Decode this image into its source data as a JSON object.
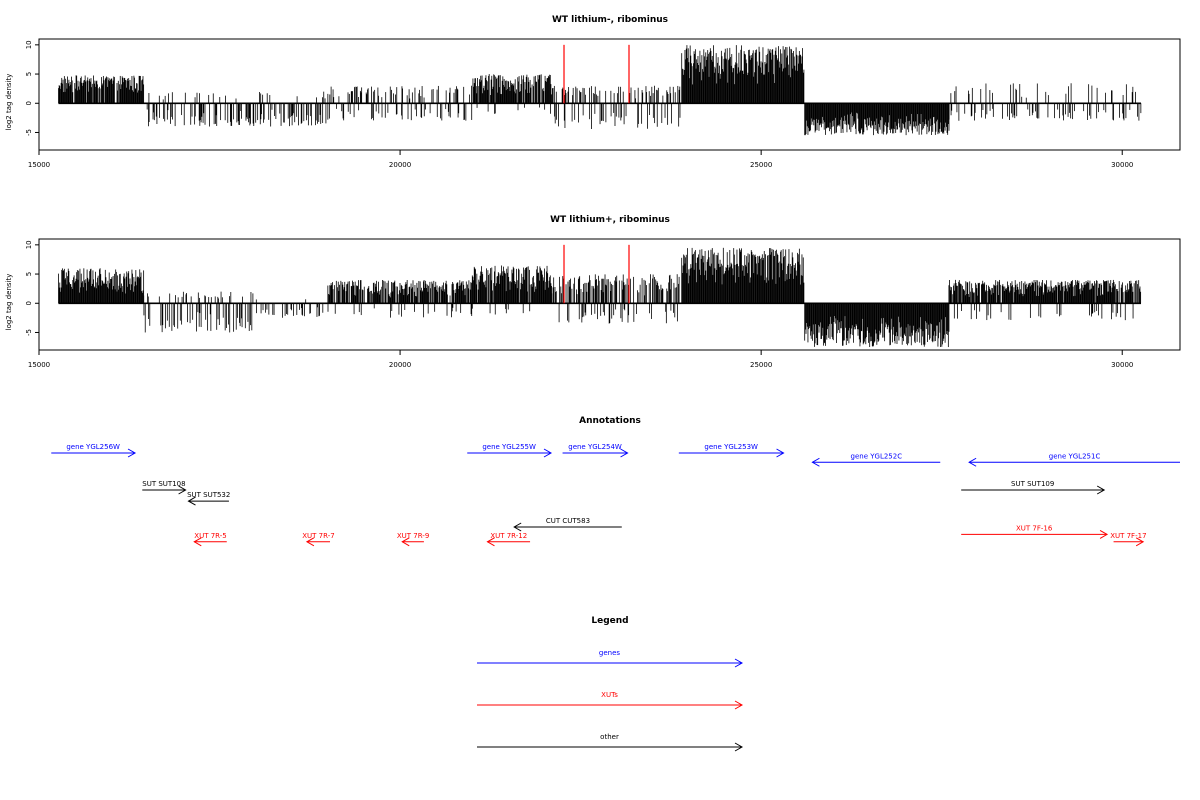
{
  "chart_data": [
    {
      "type": "bar",
      "title": "WT lithium-, ribominus",
      "ylabel": "log2 tag density",
      "xlim": [
        15000,
        30800
      ],
      "ylim": [
        -8,
        11
      ],
      "x_ticks": [
        15000,
        20000,
        25000,
        30000
      ],
      "y_ticks": [
        10,
        5,
        0,
        -5
      ],
      "data_range": [
        15270,
        30260
      ],
      "highlight_x": [
        22270,
        23170
      ],
      "highlight_color": "#ff0000",
      "bar_color": "#000000",
      "segments": [
        {
          "start": 15270,
          "end": 16450,
          "density": 0.9,
          "max": 4.8,
          "min": 0,
          "neg_density": 0.05
        },
        {
          "start": 16450,
          "end": 19000,
          "density": 0.08,
          "max": 2,
          "min": -4,
          "neg_density": 0.6
        },
        {
          "start": 19000,
          "end": 21000,
          "density": 0.25,
          "max": 3,
          "min": -3,
          "neg_density": 0.4
        },
        {
          "start": 21000,
          "end": 22100,
          "density": 0.85,
          "max": 5,
          "min": -2,
          "neg_density": 0.15
        },
        {
          "start": 22100,
          "end": 23900,
          "density": 0.3,
          "max": 3,
          "min": -4.5,
          "neg_density": 0.4
        },
        {
          "start": 23900,
          "end": 25600,
          "density": 1.0,
          "max": 10,
          "min": 0,
          "neg_density": 0
        },
        {
          "start": 25600,
          "end": 27600,
          "density": 0.95,
          "max": 0,
          "min": -5.5,
          "neg_density": 1
        },
        {
          "start": 27600,
          "end": 30260,
          "density": 0.12,
          "max": 3.5,
          "min": -3,
          "neg_density": 0.5
        }
      ]
    },
    {
      "type": "bar",
      "title": "WT lithium+, ribominus",
      "ylabel": "log2 tag density",
      "xlim": [
        15000,
        30800
      ],
      "ylim": [
        -8,
        11
      ],
      "x_ticks": [
        15000,
        20000,
        25000,
        30000
      ],
      "y_ticks": [
        10,
        5,
        0,
        -5
      ],
      "data_range": [
        15270,
        30260
      ],
      "highlight_x": [
        22270,
        23170
      ],
      "highlight_color": "#ff0000",
      "bar_color": "#000000",
      "segments": [
        {
          "start": 15270,
          "end": 16450,
          "density": 1.0,
          "max": 6,
          "min": 0,
          "neg_density": 0.02
        },
        {
          "start": 16450,
          "end": 18000,
          "density": 0.2,
          "max": 2,
          "min": -5,
          "neg_density": 0.5
        },
        {
          "start": 18000,
          "end": 19000,
          "density": 0.05,
          "max": 1,
          "min": -2.5,
          "neg_density": 0.5
        },
        {
          "start": 19000,
          "end": 21000,
          "density": 0.8,
          "max": 4,
          "min": -2.5,
          "neg_density": 0.2
        },
        {
          "start": 21000,
          "end": 22100,
          "density": 0.95,
          "max": 6.5,
          "min": -2,
          "neg_density": 0.15
        },
        {
          "start": 22100,
          "end": 23900,
          "density": 0.55,
          "max": 5,
          "min": -3.5,
          "neg_density": 0.35
        },
        {
          "start": 23900,
          "end": 25600,
          "density": 1.0,
          "max": 9.5,
          "min": 0,
          "neg_density": 0
        },
        {
          "start": 25600,
          "end": 27600,
          "density": 1.0,
          "max": 0,
          "min": -7.5,
          "neg_density": 1
        },
        {
          "start": 27600,
          "end": 30260,
          "density": 0.9,
          "max": 4,
          "min": -3,
          "neg_density": 0.35
        }
      ]
    }
  ],
  "annotations": {
    "title": "Annotations",
    "xlim": [
      15000,
      30800
    ],
    "features": [
      {
        "label": "gene YGL256W",
        "start": 15170,
        "end": 16330,
        "strand": "+",
        "kind": "gene",
        "row": 0
      },
      {
        "label": "gene YGL255W",
        "start": 20930,
        "end": 22090,
        "strand": "+",
        "kind": "gene",
        "row": 0
      },
      {
        "label": "gene YGL254W",
        "start": 22250,
        "end": 23150,
        "strand": "+",
        "kind": "gene",
        "row": 0
      },
      {
        "label": "gene YGL253W",
        "start": 23860,
        "end": 25310,
        "strand": "+",
        "kind": "gene",
        "row": 0
      },
      {
        "label": "gene YGL252C",
        "start": 25710,
        "end": 27480,
        "strand": "-",
        "kind": "gene",
        "row": 0.25
      },
      {
        "label": "gene YGL251C",
        "start": 27880,
        "end": 30800,
        "strand": "-",
        "kind": "gene",
        "row": 0.25
      },
      {
        "label": "SUT SUT108",
        "start": 16430,
        "end": 17030,
        "strand": "+",
        "kind": "other",
        "row": 1
      },
      {
        "label": "SUT SUT532",
        "start": 17070,
        "end": 17630,
        "strand": "-",
        "kind": "other",
        "row": 1.3
      },
      {
        "label": "SUT SUT109",
        "start": 27770,
        "end": 29750,
        "strand": "+",
        "kind": "other",
        "row": 1
      },
      {
        "label": "CUT CUT583",
        "start": 21580,
        "end": 23070,
        "strand": "-",
        "kind": "other",
        "row": 2
      },
      {
        "label": "XUT 7R-5",
        "start": 17150,
        "end": 17600,
        "strand": "-",
        "kind": "xut",
        "row": 2.4
      },
      {
        "label": "XUT 7R-7",
        "start": 18710,
        "end": 19030,
        "strand": "-",
        "kind": "xut",
        "row": 2.4
      },
      {
        "label": "XUT 7R-9",
        "start": 20030,
        "end": 20330,
        "strand": "-",
        "kind": "xut",
        "row": 2.4
      },
      {
        "label": "XUT 7R-12",
        "start": 21210,
        "end": 21800,
        "strand": "-",
        "kind": "xut",
        "row": 2.4
      },
      {
        "label": "XUT 7F-16",
        "start": 27770,
        "end": 29790,
        "strand": "+",
        "kind": "xut",
        "row": 2.2
      },
      {
        "label": "XUT 7F-17",
        "start": 29880,
        "end": 30290,
        "strand": "+",
        "kind": "xut",
        "row": 2.4
      }
    ],
    "colors": {
      "gene": "#0000ff",
      "xut": "#ff0000",
      "other": "#000000"
    }
  },
  "legend": {
    "title": "Legend",
    "items": [
      {
        "label": "genes",
        "color": "#0000ff"
      },
      {
        "label": "XUTs",
        "color": "#ff0000"
      },
      {
        "label": "other",
        "color": "#000000"
      }
    ]
  }
}
